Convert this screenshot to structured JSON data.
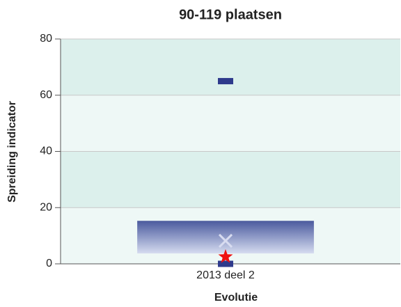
{
  "chart_data": {
    "type": "box",
    "title": "90-119 plaatsen",
    "y_label": "Spreiding indicator",
    "x_label": "Evolutie",
    "categories": [
      "2013 deel 2"
    ],
    "boxes": [
      {
        "min": 0,
        "q1": 3.7,
        "q3": 15.3,
        "max": 65,
        "mean": 8.2,
        "value": 2.5
      }
    ],
    "box_color": "#4a5a9e",
    "whisker_color": "#2e3a8c",
    "mean_color": "#d8dcf0",
    "value_color": "#ee1111",
    "ylim": [
      0,
      80
    ],
    "yticks": [
      0,
      20,
      40,
      60,
      80
    ],
    "grid": true
  }
}
